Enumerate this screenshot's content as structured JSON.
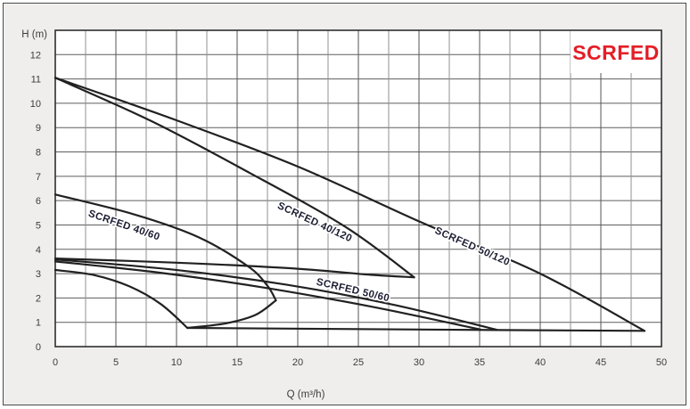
{
  "frame": {
    "background": "#efeeec",
    "border_color": "#4a4a4a"
  },
  "title": {
    "text": "SCRFED",
    "color": "#e41e26",
    "box_color": "#ffffff"
  },
  "axes": {
    "y_label": "H (m)",
    "x_label": "Q (m³/h)",
    "x_ticks": [
      0,
      5,
      10,
      15,
      20,
      25,
      30,
      35,
      40,
      45,
      50
    ],
    "y_ticks": [
      0,
      1,
      2,
      3,
      4,
      5,
      6,
      7,
      8,
      9,
      10,
      11,
      12
    ],
    "x_minor_step": 2.5,
    "tick_color": "#3c3c3c",
    "grid_minor_color": "#919191",
    "grid_major_color": "#555555",
    "grid_horizontal_color": "#5e5e5e",
    "frame_color": "#2e2e2e"
  },
  "chart_data": {
    "type": "line",
    "title": "SCRFED",
    "xlabel": "Q (m³/h)",
    "ylabel": "H (m)",
    "xlim": [
      0,
      50
    ],
    "ylim": [
      0,
      13
    ],
    "grid": true,
    "legend_position": "none",
    "curve_color": "#212121",
    "series": [
      {
        "name": "SCRFED 40/60 max-speed curve",
        "points": [
          [
            0,
            6.25
          ],
          [
            6.4,
            5.45
          ],
          [
            11.8,
            4.5
          ],
          [
            15.9,
            3.3
          ],
          [
            17.5,
            2.5
          ],
          [
            18.2,
            1.9
          ]
        ],
        "smooth": true
      },
      {
        "name": "SCRFED 40/120 max-speed curve",
        "points": [
          [
            0,
            11.05
          ],
          [
            8,
            9.25
          ],
          [
            16,
            7.15
          ],
          [
            24,
            4.9
          ],
          [
            29.6,
            2.85
          ]
        ],
        "smooth": true
      },
      {
        "name": "SCRFED 50/120 max-speed curve",
        "points": [
          [
            0,
            11.05
          ],
          [
            10,
            9.3
          ],
          [
            20,
            7.4
          ],
          [
            30,
            5.15
          ],
          [
            40,
            3.0
          ],
          [
            48.6,
            0.65
          ]
        ],
        "smooth": true
      },
      {
        "name": "SCRFED 50/60 max-speed curve",
        "points": [
          [
            0,
            3.58
          ],
          [
            9.8,
            3.16
          ],
          [
            19.1,
            2.54
          ],
          [
            28,
            1.71
          ],
          [
            36.5,
            0.68
          ]
        ],
        "smooth": true
      },
      {
        "name": "SCRFED 40/120 min-speed curve",
        "points": [
          [
            0,
            3.62
          ],
          [
            10,
            3.45
          ],
          [
            20,
            3.2
          ],
          [
            26,
            2.95
          ],
          [
            29.6,
            2.85
          ]
        ],
        "smooth": true
      },
      {
        "name": "SCRFED 50/120 min-speed curve",
        "points": [
          [
            0,
            3.5
          ],
          [
            8.6,
            3.04
          ],
          [
            17.3,
            2.42
          ],
          [
            26.1,
            1.64
          ],
          [
            35.1,
            0.7
          ]
        ],
        "smooth": true
      },
      {
        "name": "SCRFED 40/60 - 50/60 min-speed curve",
        "points": [
          [
            0,
            3.15
          ],
          [
            3.2,
            2.94
          ],
          [
            6.1,
            2.48
          ],
          [
            8.7,
            1.75
          ],
          [
            10.9,
            0.77
          ]
        ],
        "smooth": true
      },
      {
        "name": "SCRFED 40/60 max-flow boundary",
        "points": [
          [
            10.9,
            0.77
          ],
          [
            14,
            0.95
          ],
          [
            16.5,
            1.3
          ],
          [
            18.2,
            1.9
          ]
        ],
        "smooth": true
      },
      {
        "name": "bottom max-flow boundary",
        "points": [
          [
            10.9,
            0.77
          ],
          [
            36.5,
            0.68
          ],
          [
            48.6,
            0.65
          ]
        ],
        "smooth": false
      }
    ],
    "labels": [
      {
        "text": "SCRFED 40/60",
        "q": 5.6,
        "h": 4.87,
        "angle": 19
      },
      {
        "text": "SCRFED 40/120",
        "q": 21.3,
        "h": 5.0,
        "angle": 25
      },
      {
        "text": "SCRFED 50/120",
        "q": 34.3,
        "h": 4.0,
        "angle": 24
      },
      {
        "text": "SCRFED 50/60",
        "q": 24.5,
        "h": 2.2,
        "angle": 13
      }
    ],
    "label_color": "#1d1d33"
  }
}
